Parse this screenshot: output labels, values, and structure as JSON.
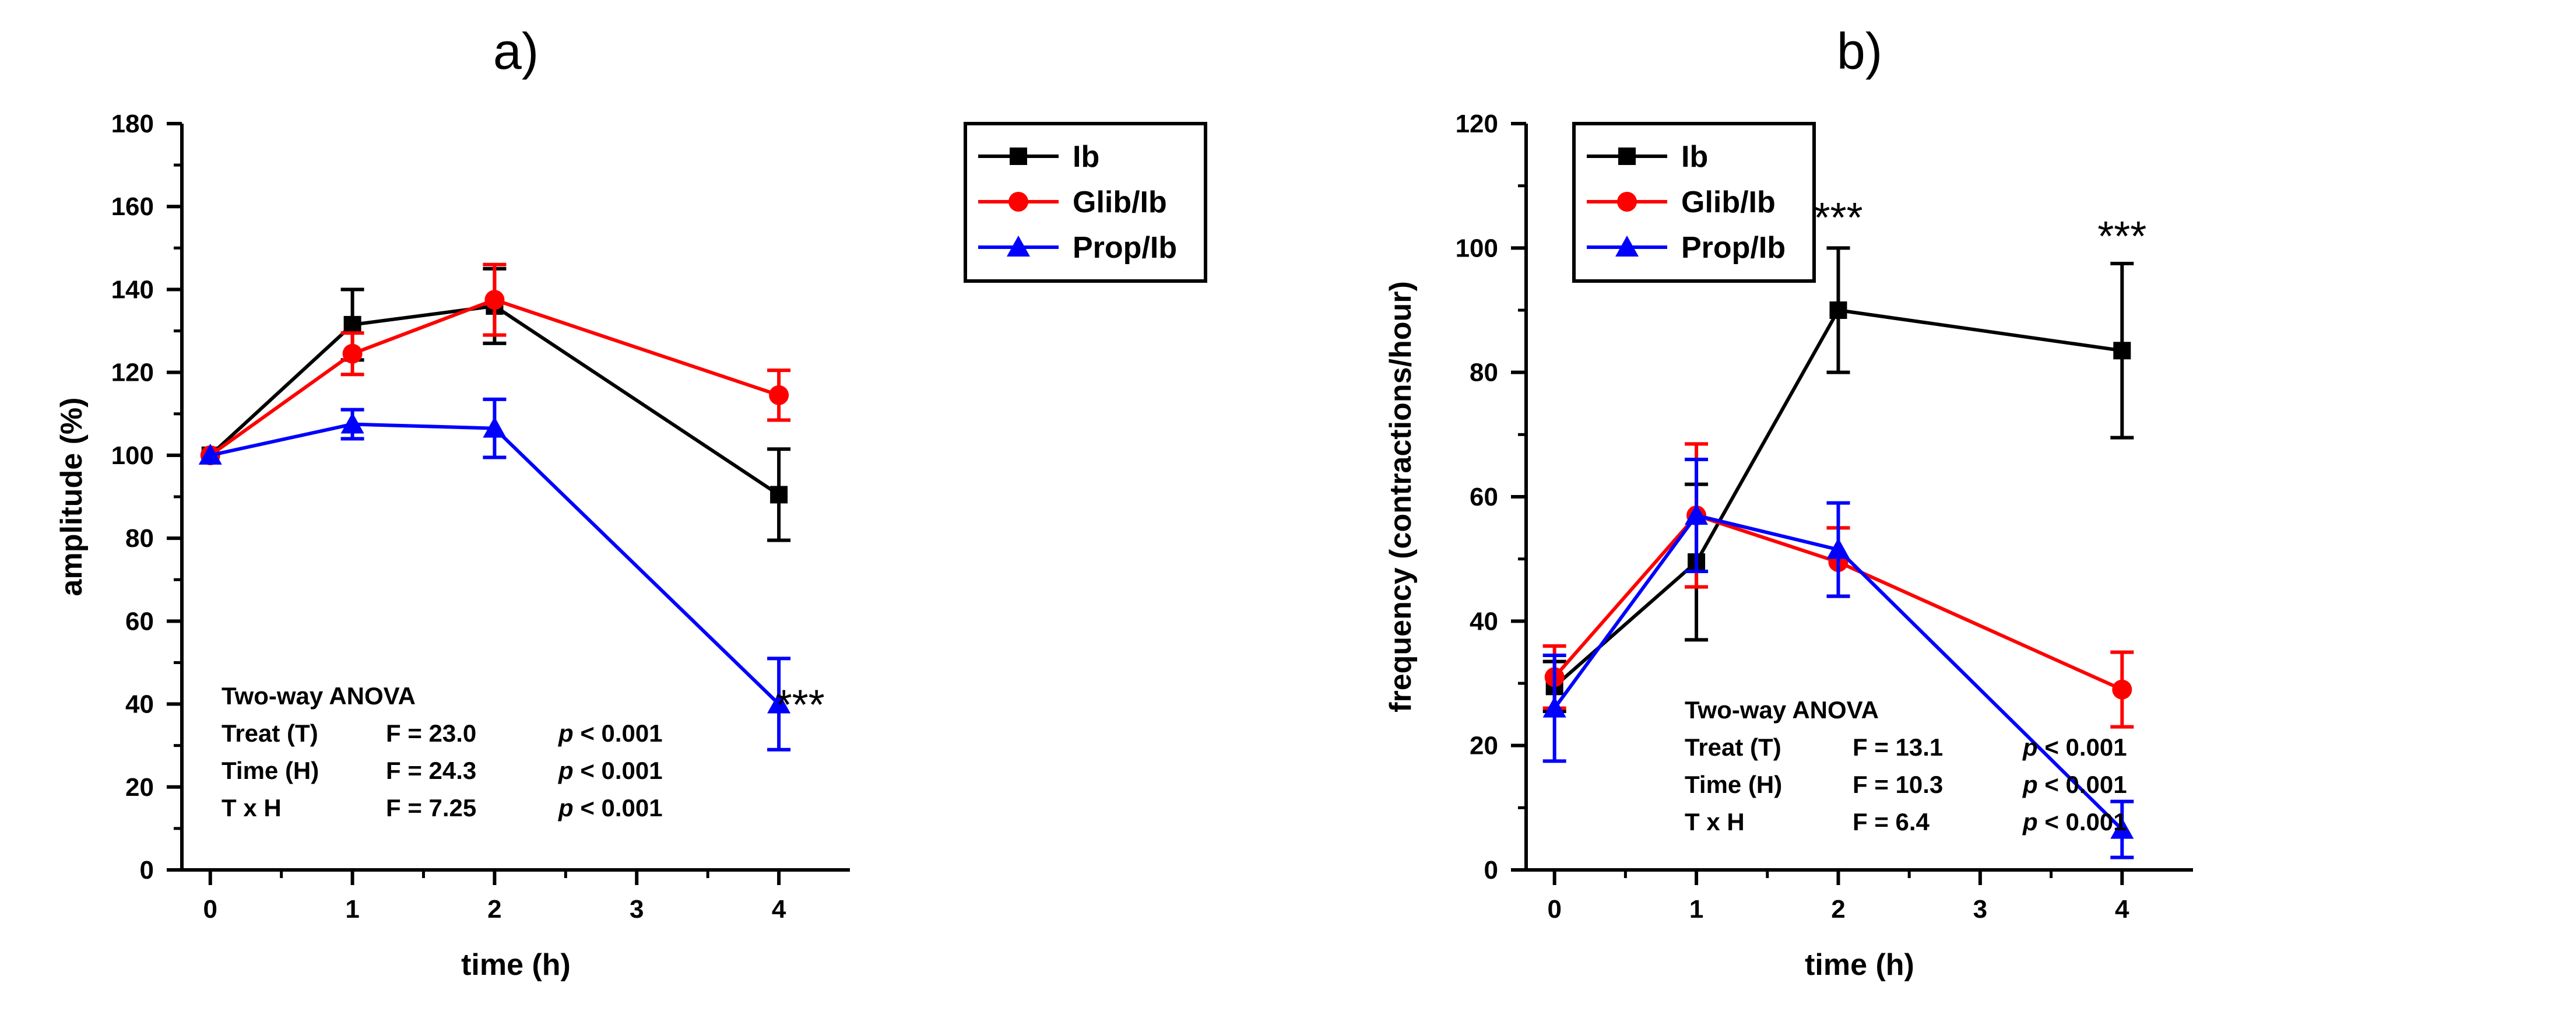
{
  "chart_data": [
    {
      "type": "line",
      "title": "a)",
      "xlabel": "time (h)",
      "ylabel": "amplitude (%)",
      "xlim": [
        -0.2,
        4.5
      ],
      "ylim": [
        0,
        180
      ],
      "x_ticks": [
        0,
        1,
        2,
        3,
        4
      ],
      "y_ticks": [
        0,
        20,
        40,
        60,
        80,
        100,
        120,
        140,
        160,
        180
      ],
      "legend_position": "top-right",
      "series": [
        {
          "name": "Ib",
          "color": "#000000",
          "marker": "square",
          "x": [
            0,
            1,
            2,
            4
          ],
          "y": [
            100,
            131.5,
            136,
            90.5
          ],
          "err": [
            0,
            8.5,
            9,
            11
          ]
        },
        {
          "name": "Glib/Ib",
          "color": "#ff0000",
          "marker": "circle",
          "x": [
            0,
            1,
            2,
            4
          ],
          "y": [
            100,
            124.5,
            137.5,
            114.5
          ],
          "err": [
            0,
            5,
            8.5,
            6
          ]
        },
        {
          "name": "Prop/Ib",
          "color": "#0000ff",
          "marker": "triangle",
          "x": [
            0,
            1,
            2,
            4
          ],
          "y": [
            100,
            107.5,
            106.5,
            40
          ],
          "err": [
            0,
            3.5,
            7,
            11
          ]
        }
      ],
      "annotations": [
        {
          "text": "***",
          "x": 4.15,
          "y": 40
        }
      ],
      "anova": {
        "title": "Two-way ANOVA",
        "rows": [
          {
            "label": "Treat (T)",
            "f": "F = 23.0",
            "p_italic": "p",
            "p_rest": " < 0.001"
          },
          {
            "label": "Time (H)",
            "f": "F = 24.3",
            "p_italic": "p",
            "p_rest": " < 0.001"
          },
          {
            "label": "T x H",
            "f": "F = 7.25",
            "p_italic": "p",
            "p_rest": " < 0.001"
          }
        ]
      }
    },
    {
      "type": "line",
      "title": "b)",
      "xlabel": "time (h)",
      "ylabel": "frequency (contractions/hour)",
      "xlim": [
        -0.2,
        4.5
      ],
      "ylim": [
        0,
        120
      ],
      "x_ticks": [
        0,
        1,
        2,
        3,
        4
      ],
      "y_ticks": [
        0,
        20,
        40,
        60,
        80,
        100,
        120
      ],
      "legend_position": "top-left",
      "series": [
        {
          "name": "Ib",
          "color": "#000000",
          "marker": "square",
          "x": [
            0,
            1,
            2,
            4
          ],
          "y": [
            29.5,
            49.5,
            90,
            83.5
          ],
          "err": [
            4,
            12.5,
            10,
            14
          ]
        },
        {
          "name": "Glib/Ib",
          "color": "#ff0000",
          "marker": "circle",
          "x": [
            0,
            1,
            2,
            4
          ],
          "y": [
            31,
            57,
            49.5,
            29
          ],
          "err": [
            5,
            11.5,
            5.5,
            6
          ]
        },
        {
          "name": "Prop/Ib",
          "color": "#0000ff",
          "marker": "triangle",
          "x": [
            0,
            1,
            2,
            4
          ],
          "y": [
            26,
            57,
            51.5,
            6.5
          ],
          "err": [
            8.5,
            9,
            7.5,
            4.5
          ]
        }
      ],
      "annotations": [
        {
          "text": "***",
          "x": 2,
          "y": 105
        },
        {
          "text": "***",
          "x": 4,
          "y": 102
        }
      ],
      "anova": {
        "title": "Two-way ANOVA",
        "rows": [
          {
            "label": "Treat (T)",
            "f": "F = 13.1",
            "p_italic": "p",
            "p_rest": " < 0.001"
          },
          {
            "label": "Time (H)",
            "f": "F = 10.3",
            "p_italic": "p",
            "p_rest": " < 0.001"
          },
          {
            "label": "T x H",
            "f": "F = 6.4",
            "p_italic": "p",
            "p_rest": " < 0.001"
          }
        ]
      }
    }
  ]
}
